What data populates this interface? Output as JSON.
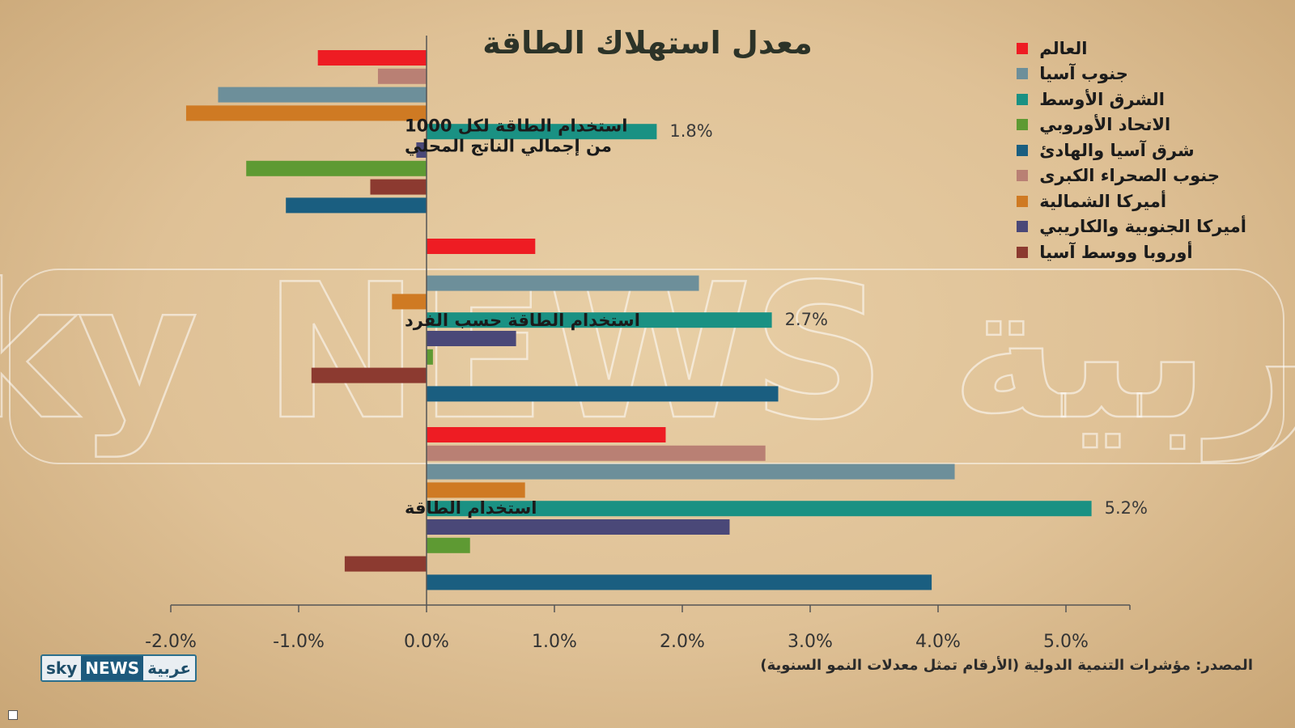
{
  "title": "معدل استهلاك الطاقة",
  "source": "المصدر: مؤشرات التنمية الدولية (الأرقام تمثل معدلات النمو السنوية)",
  "logo": {
    "sky": "sky",
    "news": "NEWS",
    "arabic": "عربية"
  },
  "watermark": "sky NEWS عربية",
  "colors": {
    "world": "#ee1c23",
    "south_asia": "#6d8f9a",
    "middle_east": "#1a9183",
    "eu": "#5e9a33",
    "east_asia_pacific": "#1a5e80",
    "ssa": "#b98074",
    "north_america": "#cf7a23",
    "latam": "#4a4878",
    "europe_central_asia": "#8c3a30"
  },
  "chart_data": {
    "type": "bar",
    "orientation": "horizontal",
    "x_unit": "%",
    "xlim": [
      -2.0,
      5.5
    ],
    "x_ticks": [
      "-2.0%",
      "-1.0%",
      "0.0%",
      "1.0%",
      "2.0%",
      "3.0%",
      "4.0%",
      "5.0%"
    ],
    "groups": [
      {
        "label": "استخدام الطاقة لكل 1000 من إجمالي الناتج المحلي",
        "label_lines": [
          "استخدام الطاقة لكل 1000",
          "من إجمالي الناتج المحلي"
        ],
        "bars": [
          {
            "series": "العالم",
            "color": "#ee1c23",
            "value": -0.85
          },
          {
            "series": "جنوب الصحراء الكبرى",
            "color": "#b98074",
            "value": -0.38
          },
          {
            "series": "جنوب آسيا",
            "color": "#6d8f9a",
            "value": -1.63
          },
          {
            "series": "أميركا الشمالية",
            "color": "#cf7a23",
            "value": -1.88
          },
          {
            "series": "الشرق الأوسط",
            "color": "#1a9183",
            "value": 1.8,
            "label": "1.8%"
          },
          {
            "series": "أميركا الجنوبية والكاريبي",
            "color": "#4a4878",
            "value": -0.08
          },
          {
            "series": "الاتحاد الأوروبي",
            "color": "#5e9a33",
            "value": -1.41
          },
          {
            "series": "أوروبا ووسط آسيا",
            "color": "#8c3a30",
            "value": -0.44
          },
          {
            "series": "شرق آسيا والهادئ",
            "color": "#1a5e80",
            "value": -1.1
          }
        ]
      },
      {
        "label": "استخدام الطاقة حسب الفرد",
        "label_lines": [
          "استخدام الطاقة حسب الفرد"
        ],
        "bars": [
          {
            "series": "العالم",
            "color": "#ee1c23",
            "value": 0.85
          },
          {
            "series": "جنوب الصحراء الكبرى",
            "color": "#b98074",
            "value": 0.0
          },
          {
            "series": "جنوب آسيا",
            "color": "#6d8f9a",
            "value": 2.13
          },
          {
            "series": "أميركا الشمالية",
            "color": "#cf7a23",
            "value": -0.27
          },
          {
            "series": "الشرق الأوسط",
            "color": "#1a9183",
            "value": 2.7,
            "label": "2.7%"
          },
          {
            "series": "أميركا الجنوبية والكاريبي",
            "color": "#4a4878",
            "value": 0.7
          },
          {
            "series": "الاتحاد الأوروبي",
            "color": "#5e9a33",
            "value": 0.05
          },
          {
            "series": "أوروبا ووسط آسيا",
            "color": "#8c3a30",
            "value": -0.9
          },
          {
            "series": "شرق آسيا والهادئ",
            "color": "#1a5e80",
            "value": 2.75
          }
        ]
      },
      {
        "label": "استخدام الطاقة",
        "label_lines": [
          "استخدام الطاقة"
        ],
        "bars": [
          {
            "series": "العالم",
            "color": "#ee1c23",
            "value": 1.87
          },
          {
            "series": "جنوب الصحراء الكبرى",
            "color": "#b98074",
            "value": 2.65
          },
          {
            "series": "جنوب آسيا",
            "color": "#6d8f9a",
            "value": 4.13
          },
          {
            "series": "أميركا الشمالية",
            "color": "#cf7a23",
            "value": 0.77
          },
          {
            "series": "الشرق الأوسط",
            "color": "#1a9183",
            "value": 5.2,
            "label": "5.2%"
          },
          {
            "series": "أميركا الجنوبية والكاريبي",
            "color": "#4a4878",
            "value": 2.37
          },
          {
            "series": "الاتحاد الأوروبي",
            "color": "#5e9a33",
            "value": 0.34
          },
          {
            "series": "أوروبا ووسط آسيا",
            "color": "#8c3a30",
            "value": -0.64
          },
          {
            "series": "شرق آسيا والهادئ",
            "color": "#1a5e80",
            "value": 3.95
          }
        ]
      }
    ],
    "legend": [
      {
        "name": "العالم",
        "color": "#ee1c23"
      },
      {
        "name": "جنوب آسيا",
        "color": "#6d8f9a"
      },
      {
        "name": "الشرق الأوسط",
        "color": "#1a9183"
      },
      {
        "name": "الاتحاد الأوروبي",
        "color": "#5e9a33"
      },
      {
        "name": "شرق آسيا والهادئ",
        "color": "#1a5e80"
      },
      {
        "name": "جنوب الصحراء الكبرى",
        "color": "#b98074"
      },
      {
        "name": "أميركا الشمالية",
        "color": "#cf7a23"
      },
      {
        "name": "أميركا الجنوبية والكاريبي",
        "color": "#4a4878"
      },
      {
        "name": "أوروبا ووسط آسيا",
        "color": "#8c3a30"
      }
    ],
    "legend_position": "top-right",
    "grid": false
  }
}
